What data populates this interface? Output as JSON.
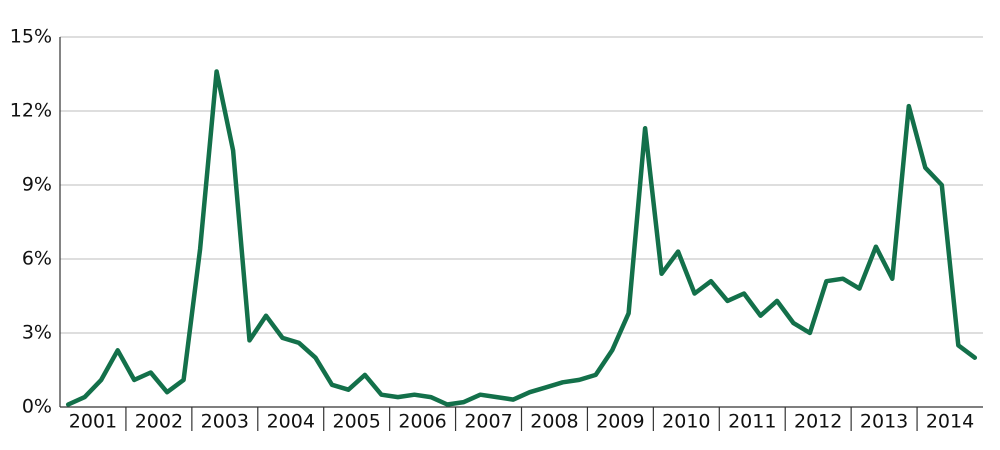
{
  "chart_data": {
    "type": "line",
    "categories": [
      "2001",
      null,
      null,
      null,
      "2002",
      null,
      null,
      null,
      "2003",
      null,
      null,
      null,
      "2004",
      null,
      null,
      null,
      "2005",
      null,
      null,
      null,
      "2006",
      null,
      null,
      null,
      "2007",
      null,
      null,
      null,
      "2008",
      null,
      null,
      null,
      "2009",
      null,
      null,
      null,
      "2010",
      null,
      null,
      null,
      "2011",
      null,
      null,
      null,
      "2012",
      null,
      null,
      null,
      "2013",
      null,
      null,
      null,
      "2014",
      null,
      null,
      null
    ],
    "values": [
      0.1,
      0.4,
      1.1,
      2.3,
      1.1,
      1.4,
      0.6,
      1.1,
      6.4,
      13.6,
      10.4,
      2.7,
      3.7,
      2.8,
      2.6,
      2.0,
      0.9,
      0.7,
      1.3,
      0.5,
      0.4,
      0.5,
      0.4,
      0.1,
      0.2,
      0.5,
      0.4,
      0.3,
      0.6,
      0.8,
      1.0,
      1.1,
      1.3,
      2.3,
      3.8,
      11.3,
      5.4,
      6.3,
      4.6,
      5.1,
      4.3,
      4.6,
      3.7,
      4.3,
      3.4,
      3.0,
      5.1,
      5.2,
      4.8,
      6.5,
      5.2,
      12.2,
      9.7,
      9.0,
      2.5,
      2.0
    ],
    "color": "#13704a",
    "ylim": [
      0,
      15
    ],
    "yticks": [
      {
        "value": 0,
        "label": "0%"
      },
      {
        "value": 3,
        "label": "3%"
      },
      {
        "value": 6,
        "label": "6%"
      },
      {
        "value": 9,
        "label": "9%"
      },
      {
        "value": 12,
        "label": "12%"
      },
      {
        "value": 15,
        "label": "15%"
      }
    ],
    "grid": true
  }
}
